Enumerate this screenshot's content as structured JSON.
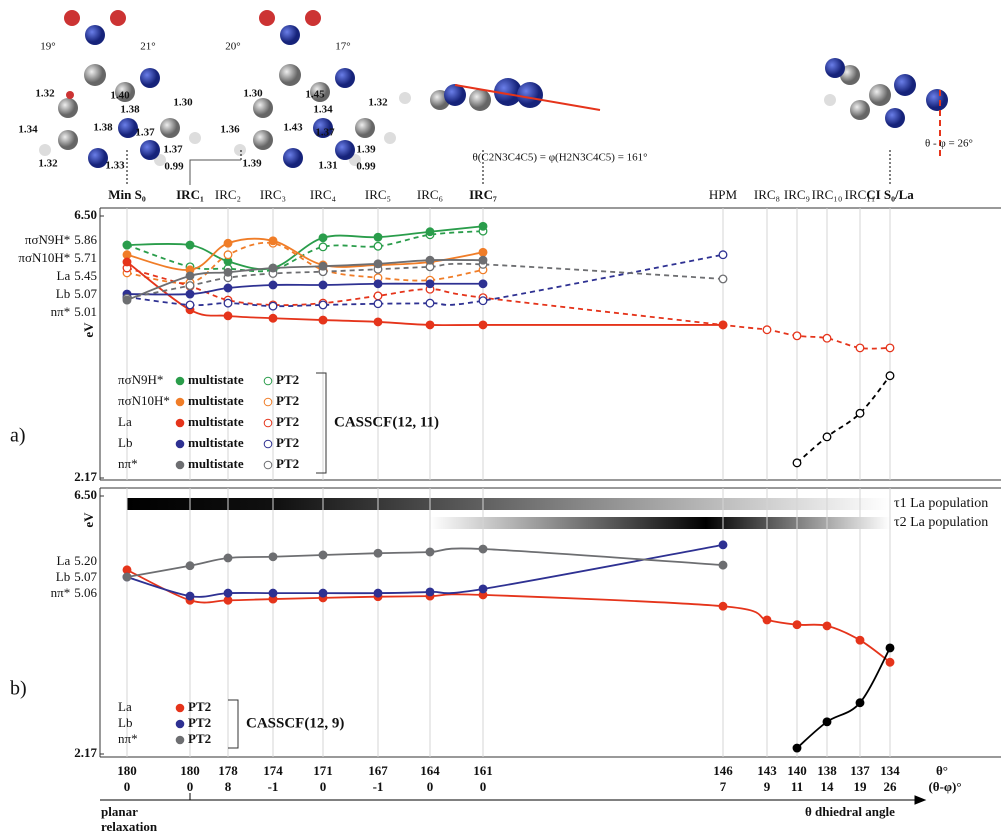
{
  "structures": [
    {
      "angles": [
        "19°",
        "21°"
      ],
      "bonds": [
        "1.32",
        "1.40",
        "1.38",
        "1.30",
        "1.34",
        "1.38",
        "1.37",
        "1.37",
        "1.32",
        "1.33",
        "0.99"
      ]
    },
    {
      "angles": [
        "20°",
        "17°"
      ],
      "bonds": [
        "1.30",
        "1.45",
        "1.34",
        "1.32",
        "1.36",
        "1.43",
        "1.37",
        "1.39",
        "1.39",
        "1.31",
        "0.99"
      ]
    }
  ],
  "annotations": [
    "θ(C2N3C4C5) = φ(H2N3C4C5) = 161°",
    "θ - φ = 26°"
  ],
  "chart_data": [
    {
      "type": "line",
      "panel_label": "a)",
      "y_label": "eV",
      "categories": [
        "Min S₀",
        "IRC₁",
        "IRC₂",
        "IRC₃",
        "IRC₄",
        "IRC₅",
        "IRC₆",
        "IRC₇",
        "HPM",
        "IRC₈",
        "IRC₉",
        "IRC₁₀",
        "IRC₁₁",
        "CI S₀/La"
      ],
      "ylim": [
        2.17,
        6.5
      ],
      "yticks": [
        2.17,
        {
          "value": 6.5,
          "label": "6.50"
        }
      ],
      "grid": true,
      "methods": [
        "multistate",
        "PT2"
      ],
      "method_note": "CASSCF(12, 11)",
      "series": [
        {
          "name": "πσN9H*",
          "level": "5.86",
          "color": "#2a9d4b",
          "values": [
            6.02,
            6.02,
            5.75,
            5.64,
            6.14,
            6.15,
            6.24,
            6.33,
            null,
            null,
            null,
            null,
            null,
            null
          ],
          "pt2_values": [
            6.02,
            5.66,
            5.63,
            5.61,
            5.99,
            6.0,
            6.19,
            6.25,
            null,
            null,
            null,
            null,
            null,
            null
          ]
        },
        {
          "name": "πσN10H*",
          "level": "5.71",
          "color": "#f07d28",
          "values": [
            5.86,
            5.61,
            6.05,
            6.09,
            5.69,
            5.69,
            5.74,
            5.9,
            null,
            null,
            null,
            null,
            null,
            null
          ],
          "pt2_values": [
            5.56,
            5.4,
            5.86,
            6.05,
            5.61,
            5.48,
            5.44,
            5.61,
            null,
            null,
            null,
            null,
            null,
            null
          ]
        },
        {
          "name": "La",
          "level": "5.45",
          "color": "#e5341b",
          "values": [
            5.74,
            4.95,
            4.85,
            4.81,
            4.78,
            4.75,
            4.7,
            4.7,
            4.7,
            null,
            null,
            null,
            null,
            null
          ],
          "pt2_values": [
            5.64,
            5.34,
            5.11,
            5.03,
            5.06,
            5.18,
            5.29,
            5.15,
            4.7,
            4.62,
            4.52,
            4.48,
            4.32,
            4.32
          ]
        },
        {
          "name": "Lb",
          "level": "5.07",
          "color": "#2e3192",
          "values": [
            5.21,
            5.21,
            5.31,
            5.36,
            5.36,
            5.38,
            5.38,
            5.38,
            null,
            null,
            null,
            null,
            null,
            null
          ],
          "pt2_values": [
            5.16,
            5.03,
            5.06,
            5.01,
            5.03,
            5.05,
            5.06,
            5.1,
            5.86,
            null,
            null,
            null,
            null,
            null
          ]
        },
        {
          "name": "nπ*",
          "level": "5.01",
          "color": "#6d6e71",
          "values": [
            5.11,
            5.51,
            5.57,
            5.64,
            5.67,
            5.71,
            5.77,
            5.77,
            null,
            null,
            null,
            null,
            null,
            null
          ],
          "pt2_values": [
            5.14,
            5.35,
            5.48,
            5.55,
            5.58,
            5.62,
            5.66,
            5.7,
            5.46,
            null,
            null,
            null,
            null,
            null
          ]
        },
        {
          "color": "#000000",
          "values": [
            null,
            null,
            null,
            null,
            null,
            null,
            null,
            null,
            null,
            null,
            null,
            null,
            null,
            null
          ],
          "pt2_values": [
            null,
            null,
            null,
            null,
            null,
            null,
            null,
            null,
            null,
            null,
            2.42,
            2.85,
            3.24,
            3.86
          ]
        }
      ]
    },
    {
      "type": "line",
      "panel_label": "b)",
      "y_label": "eV",
      "categories": [
        180,
        180,
        178,
        174,
        171,
        167,
        164,
        161,
        146,
        143,
        140,
        138,
        137,
        134
      ],
      "sub_categories": [
        0,
        0,
        8,
        -1,
        0,
        -1,
        0,
        0,
        7,
        9,
        11,
        14,
        19,
        26
      ],
      "category_title": "θ°",
      "sub_category_title": "(θ-φ)°",
      "arrow_labels": [
        "planar",
        "relaxation",
        "θ dhiedral angle"
      ],
      "bands": [
        "τ1 La population",
        "τ2 La population"
      ],
      "ylim": [
        2.17,
        6.5
      ],
      "yticks": [
        2.17,
        {
          "value": 6.5,
          "label": "6.50"
        }
      ],
      "grid": true,
      "methods": [
        "PT2"
      ],
      "method_note": "CASSCF(12, 9)",
      "series": [
        {
          "name": "La",
          "level": "5.20",
          "color": "#e5341b",
          "values": [
            5.26,
            4.75,
            4.75,
            4.77,
            4.79,
            4.81,
            4.82,
            4.84,
            4.65,
            4.42,
            4.34,
            4.32,
            4.08,
            3.71
          ]
        },
        {
          "name": "Lb",
          "level": "5.07",
          "color": "#2e3192",
          "values": [
            5.14,
            4.82,
            4.87,
            4.87,
            4.87,
            4.87,
            4.89,
            4.94,
            5.68,
            null,
            null,
            null,
            null,
            null
          ]
        },
        {
          "name": "nπ*",
          "level": "5.06",
          "color": "#6d6e71",
          "values": [
            5.14,
            5.33,
            5.46,
            5.48,
            5.51,
            5.54,
            5.56,
            5.61,
            5.34,
            null,
            null,
            null,
            null,
            null
          ]
        },
        {
          "color": "#000000",
          "values": [
            null,
            null,
            null,
            null,
            null,
            null,
            null,
            null,
            null,
            null,
            2.27,
            2.71,
            3.03,
            3.95
          ]
        }
      ]
    }
  ]
}
